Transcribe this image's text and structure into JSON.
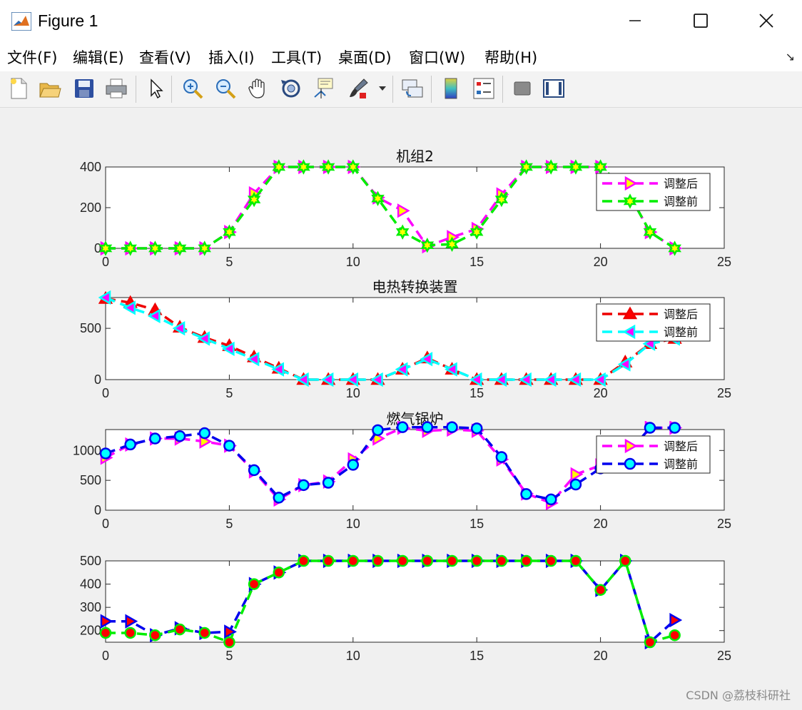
{
  "window": {
    "title": "Figure 1",
    "watermark": "CSDN @荔枝科研社"
  },
  "menu": [
    {
      "label": "文件(F)"
    },
    {
      "label": "编辑(E)"
    },
    {
      "label": "查看(V)"
    },
    {
      "label": "插入(I)"
    },
    {
      "label": "工具(T)"
    },
    {
      "label": "桌面(D)"
    },
    {
      "label": "窗口(W)"
    },
    {
      "label": "帮助(H)"
    }
  ],
  "toolbar": [
    {
      "icon": "new-figure-icon"
    },
    {
      "icon": "open-file-icon"
    },
    {
      "icon": "save-icon"
    },
    {
      "icon": "print-icon"
    },
    {
      "icon": "pointer-icon"
    },
    {
      "icon": "zoom-in-icon"
    },
    {
      "icon": "zoom-out-icon"
    },
    {
      "icon": "pan-hand-icon"
    },
    {
      "icon": "rotate-3d-icon"
    },
    {
      "icon": "data-cursor-icon"
    },
    {
      "icon": "brush-icon"
    },
    {
      "icon": "link-plot-icon"
    },
    {
      "icon": "colorbar-icon"
    },
    {
      "icon": "legend-icon"
    },
    {
      "icon": "hide-plot-tools-icon"
    },
    {
      "icon": "show-plot-tools-icon"
    }
  ],
  "chart_data": [
    {
      "type": "line",
      "title": "机组2",
      "xlim": [
        0,
        25
      ],
      "ylim": [
        0,
        400
      ],
      "xticks": [
        0,
        5,
        10,
        15,
        20,
        25
      ],
      "yticks": [
        0,
        200,
        400
      ],
      "legend_position": "top-right",
      "x": [
        0,
        1,
        2,
        3,
        4,
        5,
        6,
        7,
        8,
        9,
        10,
        11,
        12,
        13,
        14,
        15,
        16,
        17,
        18,
        19,
        20,
        21,
        22,
        23
      ],
      "series": [
        {
          "name": "调整后",
          "color": "#ff00ff",
          "marker": "triangle-right",
          "marker_face": "#ffff00",
          "values": [
            0,
            0,
            0,
            0,
            0,
            80,
            270,
            400,
            400,
            400,
            400,
            250,
            185,
            10,
            55,
            95,
            265,
            400,
            400,
            400,
            400,
            300,
            80,
            0
          ]
        },
        {
          "name": "调整前",
          "color": "#00ee00",
          "marker": "hexagram",
          "marker_face": "#ffff00",
          "values": [
            0,
            0,
            0,
            0,
            0,
            80,
            240,
            400,
            400,
            400,
            400,
            245,
            80,
            15,
            20,
            80,
            240,
            400,
            400,
            400,
            400,
            300,
            80,
            0
          ]
        }
      ]
    },
    {
      "type": "line",
      "title": "电热转换装置",
      "xlim": [
        0,
        25
      ],
      "ylim": [
        0,
        800
      ],
      "xticks": [
        0,
        5,
        10,
        15,
        20,
        25
      ],
      "yticks": [
        0,
        500
      ],
      "legend_position": "top-right",
      "x": [
        0,
        1,
        2,
        3,
        4,
        5,
        6,
        7,
        8,
        9,
        10,
        11,
        12,
        13,
        14,
        15,
        16,
        17,
        18,
        19,
        20,
        21,
        22,
        23
      ],
      "series": [
        {
          "name": "调整后",
          "color": "#ee0000",
          "marker": "triangle-up",
          "marker_face": "#ff0000",
          "values": [
            790,
            750,
            680,
            510,
            410,
            330,
            220,
            110,
            0,
            0,
            0,
            0,
            100,
            210,
            100,
            0,
            0,
            0,
            0,
            0,
            0,
            170,
            350,
            400
          ]
        },
        {
          "name": "调整前",
          "color": "#00ffff",
          "marker": "triangle-left",
          "marker_face": "#ff00ff",
          "values": [
            800,
            700,
            620,
            500,
            400,
            300,
            200,
            100,
            0,
            0,
            0,
            0,
            100,
            200,
            100,
            0,
            0,
            0,
            0,
            0,
            0,
            150,
            350,
            400
          ]
        }
      ]
    },
    {
      "type": "line",
      "title": "燃气锅炉",
      "xlim": [
        0,
        25
      ],
      "ylim": [
        0,
        1350
      ],
      "xticks": [
        0,
        5,
        10,
        15,
        20,
        25
      ],
      "yticks": [
        0,
        500,
        1000
      ],
      "legend_position": "top-right",
      "x": [
        0,
        1,
        2,
        3,
        4,
        5,
        6,
        7,
        8,
        9,
        10,
        11,
        12,
        13,
        14,
        15,
        16,
        17,
        18,
        19,
        20,
        21,
        22,
        23
      ],
      "series": [
        {
          "name": "调整后",
          "color": "#ff00ff",
          "marker": "triangle-right",
          "marker_face": "#ffff00",
          "values": [
            880,
            1100,
            1200,
            1200,
            1150,
            1080,
            650,
            180,
            420,
            480,
            850,
            1200,
            1380,
            1330,
            1350,
            1330,
            850,
            280,
            120,
            600,
            750,
            900,
            1380,
            1380
          ]
        },
        {
          "name": "调整前",
          "color": "#0000ee",
          "marker": "circle",
          "marker_face": "#00ffff",
          "values": [
            950,
            1100,
            1200,
            1240,
            1290,
            1080,
            670,
            210,
            420,
            460,
            760,
            1340,
            1390,
            1390,
            1390,
            1370,
            890,
            270,
            180,
            430,
            700,
            900,
            1380,
            1380
          ]
        }
      ]
    },
    {
      "type": "line",
      "title": "",
      "xlim": [
        0,
        25
      ],
      "ylim": [
        150,
        500
      ],
      "xticks": [
        0,
        5,
        10,
        15,
        20,
        25
      ],
      "yticks": [
        200,
        300,
        400,
        500
      ],
      "legend": false,
      "x": [
        0,
        1,
        2,
        3,
        4,
        5,
        6,
        7,
        8,
        9,
        10,
        11,
        12,
        13,
        14,
        15,
        16,
        17,
        18,
        19,
        20,
        21,
        22,
        23
      ],
      "series": [
        {
          "color": "#0000ee",
          "marker": "triangle-right",
          "marker_face": "#ff0000",
          "values": [
            240,
            240,
            180,
            210,
            190,
            195,
            400,
            450,
            500,
            500,
            500,
            500,
            500,
            500,
            500,
            500,
            500,
            500,
            500,
            500,
            375,
            500,
            150,
            245
          ]
        },
        {
          "color": "#00ee00",
          "marker": "circle",
          "marker_face": "#ff0000",
          "values": [
            190,
            190,
            180,
            205,
            190,
            150,
            400,
            450,
            500,
            500,
            500,
            500,
            500,
            500,
            500,
            500,
            500,
            500,
            500,
            500,
            375,
            500,
            150,
            180
          ]
        }
      ]
    }
  ]
}
